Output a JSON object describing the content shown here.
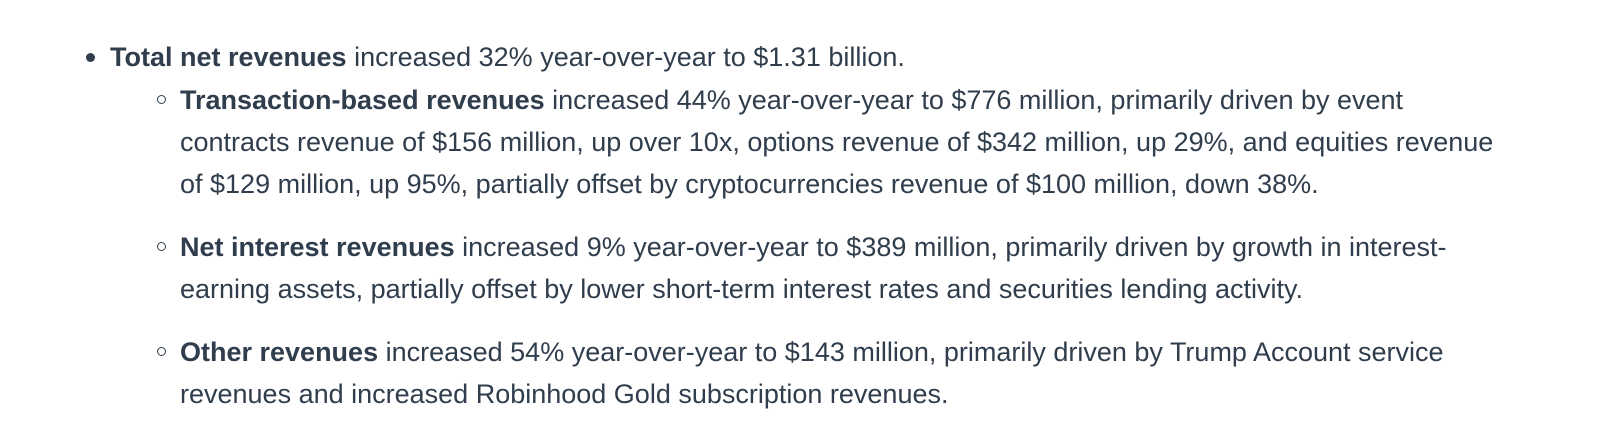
{
  "summary": {
    "total": {
      "bold": "Total net revenues",
      "text": " increased 32% year-over-year to $1.31 billion."
    },
    "items": [
      {
        "bold": "Transaction-based revenues",
        "text": " increased 44% year-over-year to $776 million, primarily driven by event contracts revenue of $156 million, up over 10x, options revenue of $342 million, up 29%, and equities revenue of $129 million, up 95%, partially offset by cryptocurrencies revenue of $100 million, down 38%."
      },
      {
        "bold": "Net interest revenues",
        "text": " increased 9% year-over-year to $389 million, primarily driven by growth in interest-earning assets, partially offset by lower short-term interest rates and securities lending activity."
      },
      {
        "bold": "Other revenues",
        "text": " increased 54% year-over-year to $143 million, primarily driven by Trump Account service revenues and increased Robinhood Gold subscription revenues."
      }
    ]
  }
}
